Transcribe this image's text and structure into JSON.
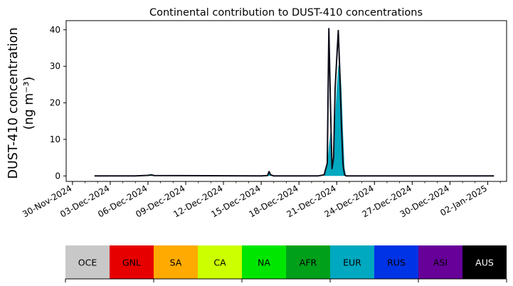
{
  "chart_data": {
    "type": "area",
    "title": "Continental contribution to DUST-410 concentrations",
    "ylabel": "DUST-410 concentration",
    "ylabel_units": "(ng m⁻³)",
    "xlabel": "",
    "ylim": [
      -1.5,
      42.5
    ],
    "xlim": [
      "2024-11-29T12:00",
      "2025-01-03T12:00"
    ],
    "grid": false,
    "y_ticks": [
      0,
      10,
      20,
      30,
      40
    ],
    "x_ticks": [
      "30-Nov-2024",
      "03-Dec-2024",
      "06-Dec-2024",
      "09-Dec-2024",
      "12-Dec-2024",
      "15-Dec-2024",
      "18-Dec-2024",
      "21-Dec-2024",
      "24-Dec-2024",
      "27-Dec-2024",
      "30-Dec-2024",
      "02-Jan-2025"
    ],
    "x_tick_dates": [
      "2024-11-30",
      "2024-12-03",
      "2024-12-06",
      "2024-12-09",
      "2024-12-12",
      "2024-12-15",
      "2024-12-18",
      "2024-12-21",
      "2024-12-24",
      "2024-12-27",
      "2024-12-30",
      "2025-01-02"
    ],
    "x": [
      "2024-12-01T18:00",
      "2024-12-05T00:00",
      "2024-12-06T00:00",
      "2024-12-06T06:00",
      "2024-12-06T12:00",
      "2024-12-15T00:00",
      "2024-12-15T12:00",
      "2024-12-15T15:00",
      "2024-12-15T18:00",
      "2024-12-16T00:00",
      "2024-12-19T12:00",
      "2024-12-20T00:00",
      "2024-12-20T06:00",
      "2024-12-20T09:00",
      "2024-12-20T12:00",
      "2024-12-20T15:00",
      "2024-12-20T18:00",
      "2024-12-20T21:00",
      "2024-12-21T00:00",
      "2024-12-21T03:00",
      "2024-12-21T06:00",
      "2024-12-21T09:00",
      "2024-12-21T12:00",
      "2024-12-21T15:00",
      "2024-12-21T18:00",
      "2024-12-21T21:00",
      "2024-12-22T00:00",
      "2024-12-22T06:00",
      "2024-12-23T00:00",
      "2025-01-02T12:00"
    ],
    "series": [
      {
        "name": "OCE",
        "values": [
          0,
          0,
          0,
          0,
          0,
          0,
          0,
          0,
          0,
          0,
          0,
          0,
          0,
          0,
          0,
          0,
          0,
          0,
          0,
          0,
          0,
          0,
          0,
          0,
          0,
          0,
          0,
          0,
          0,
          0
        ]
      },
      {
        "name": "GNL",
        "values": [
          0,
          0,
          0,
          0,
          0,
          0,
          0,
          0,
          0,
          0,
          0,
          0,
          0,
          0,
          0,
          0,
          0,
          0,
          0,
          0,
          0,
          0,
          0,
          0,
          0,
          0,
          0,
          0,
          0,
          0
        ]
      },
      {
        "name": "SA",
        "values": [
          0,
          0,
          0,
          0,
          0,
          0,
          0,
          0,
          0,
          0,
          0,
          0,
          0,
          0,
          0,
          0,
          0,
          0,
          0,
          0,
          0,
          0,
          0,
          0,
          0,
          0,
          0,
          0,
          0,
          0
        ]
      },
      {
        "name": "CA",
        "values": [
          0,
          0,
          0,
          0,
          0,
          0,
          0,
          0,
          0,
          0,
          0,
          0,
          0,
          0,
          0,
          0,
          0,
          0,
          0,
          0,
          0,
          0,
          0,
          0,
          0,
          0,
          0,
          0,
          0,
          0
        ]
      },
      {
        "name": "NA",
        "values": [
          0,
          0,
          0.15,
          0.3,
          0.1,
          0,
          0,
          0,
          0,
          0,
          0,
          0,
          0,
          0,
          0,
          0,
          0,
          0,
          0,
          0,
          0,
          0,
          0,
          0,
          0,
          0,
          0,
          0,
          0,
          0
        ]
      },
      {
        "name": "AFR",
        "values": [
          0,
          0,
          0,
          0,
          0,
          0,
          0,
          0,
          0,
          0,
          0,
          0,
          0,
          0,
          0,
          0,
          0,
          0,
          0,
          0,
          0,
          0,
          0,
          0,
          0,
          0,
          0,
          0,
          0,
          0
        ]
      },
      {
        "name": "EUR",
        "values": [
          0,
          0,
          0,
          0,
          0,
          0,
          0,
          0.8,
          0.2,
          0,
          0,
          0,
          3,
          8,
          12,
          2,
          4,
          16,
          24,
          30,
          31,
          24,
          12,
          2,
          0,
          0,
          0,
          0,
          0,
          0
        ]
      },
      {
        "name": "RUS",
        "values": [
          0,
          0,
          0,
          0,
          0,
          0,
          0,
          0,
          0,
          0,
          0,
          0,
          0,
          0,
          0,
          0,
          0,
          0,
          0,
          0,
          0,
          0,
          0,
          0,
          0,
          0,
          0,
          0,
          0,
          0
        ]
      },
      {
        "name": "ASI",
        "values": [
          0,
          0,
          0,
          0,
          0,
          0,
          0,
          0,
          0,
          0,
          0,
          0,
          0,
          0,
          0,
          0,
          0,
          0,
          0,
          0,
          0,
          0,
          0,
          0,
          0,
          0,
          0,
          0,
          0,
          0
        ]
      },
      {
        "name": "AUS",
        "values": [
          0,
          0,
          0,
          0,
          0,
          0,
          0,
          0,
          0,
          0,
          0,
          0,
          0,
          0,
          0,
          0,
          0,
          0,
          0,
          0,
          0,
          0,
          0,
          0,
          0,
          0,
          0,
          0,
          0,
          0
        ]
      }
    ],
    "total": [
      0,
      0,
      0.15,
      0.3,
      0.1,
      0,
      0.1,
      1.2,
      0.3,
      0,
      0,
      0.3,
      3.5,
      40.3,
      20,
      2,
      5,
      24,
      32,
      39.8,
      28,
      14,
      3,
      0.3,
      0,
      0,
      0,
      0,
      0,
      0
    ],
    "legend": [
      {
        "name": "OCE",
        "color": "#c8c8c8",
        "text_color": "#000000"
      },
      {
        "name": "GNL",
        "color": "#e60000",
        "text_color": "#000000"
      },
      {
        "name": "SA",
        "color": "#ffaa00",
        "text_color": "#000000"
      },
      {
        "name": "CA",
        "color": "#ccff00",
        "text_color": "#000000"
      },
      {
        "name": "NA",
        "color": "#00e600",
        "text_color": "#000000"
      },
      {
        "name": "AFR",
        "color": "#00a01a",
        "text_color": "#000000"
      },
      {
        "name": "EUR",
        "color": "#00a8c0",
        "text_color": "#000000"
      },
      {
        "name": "RUS",
        "color": "#0033e6",
        "text_color": "#000000"
      },
      {
        "name": "ASI",
        "color": "#660099",
        "text_color": "#000000"
      },
      {
        "name": "AUS",
        "color": "#000000",
        "text_color": "#ffffff"
      }
    ],
    "legend_position": "bottom"
  }
}
